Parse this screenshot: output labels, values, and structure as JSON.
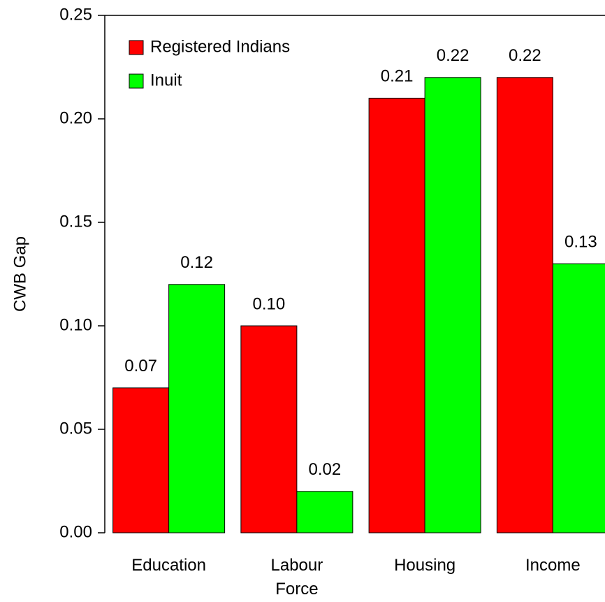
{
  "chart_data": {
    "type": "bar",
    "y_label": "CWB Gap",
    "categories": [
      "Education",
      "Labour Force",
      "Housing",
      "Income"
    ],
    "series": [
      {
        "name": "Registered Indians",
        "color": "#ff0000",
        "values": [
          0.07,
          0.1,
          0.21,
          0.22
        ],
        "value_labels": [
          "0.07",
          "0.10",
          "0.21",
          "0.22"
        ]
      },
      {
        "name": "Inuit",
        "color": "#00ff00",
        "values": [
          0.12,
          0.02,
          0.22,
          0.13
        ],
        "value_labels": [
          "0.12",
          "0.02",
          "0.22",
          "0.13"
        ]
      }
    ],
    "ylim": [
      0,
      0.25
    ],
    "yticks": [
      {
        "value": 0,
        "label": "0.00"
      },
      {
        "value": 0.05,
        "label": "0.05"
      },
      {
        "value": 0.1,
        "label": "0.10"
      },
      {
        "value": 0.15,
        "label": "0.15"
      },
      {
        "value": 0.2,
        "label": "0.20"
      },
      {
        "value": 0.25,
        "label": "0.25"
      }
    ],
    "legend": "top-left"
  }
}
